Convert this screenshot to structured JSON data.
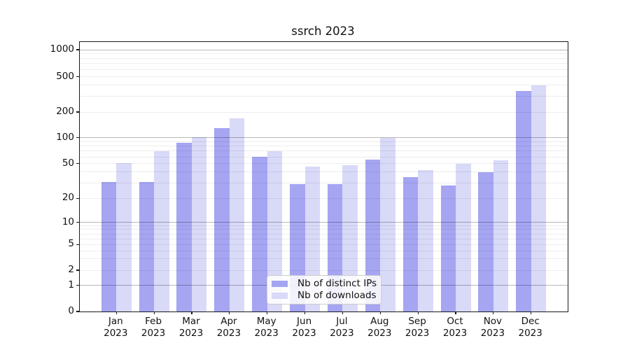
{
  "figure": {
    "background": "#ffffff"
  },
  "chart_data": {
    "type": "bar",
    "title": "ssrch 2023",
    "categories": [
      "Jan",
      "Feb",
      "Mar",
      "Apr",
      "May",
      "Jun",
      "Jul",
      "Aug",
      "Sep",
      "Oct",
      "Nov",
      "Dec"
    ],
    "category_year": "2023",
    "series": [
      {
        "name": "Nb of distinct IPs",
        "color": "#a5a5f2",
        "values": [
          31,
          31,
          88,
          130,
          60,
          29,
          29,
          56,
          35,
          28,
          40,
          345
        ]
      },
      {
        "name": "Nb of downloads",
        "color": "#d9d9f8",
        "values": [
          51,
          70,
          101,
          170,
          70,
          46,
          48,
          100,
          42,
          50,
          55,
          400
        ]
      }
    ],
    "y_axis": {
      "scale": "symlog-like",
      "tick_values": [
        0,
        1,
        2,
        5,
        10,
        20,
        50,
        100,
        200,
        500,
        1000
      ],
      "tick_fractions_from_top": [
        1,
        0.9036,
        0.8468,
        0.7514,
        0.6694,
        0.5801,
        0.4512,
        0.3551,
        0.2597,
        0.1286,
        0.0286
      ],
      "minor_grid_values": [
        3,
        4,
        6,
        7,
        8,
        9,
        30,
        40,
        60,
        70,
        80,
        90,
        300,
        400,
        600,
        700,
        800,
        900
      ],
      "major_grid_values": [
        1,
        10,
        100,
        1000
      ]
    },
    "xlabel": "",
    "ylabel": "",
    "grid": true,
    "legend_position": "lower center"
  },
  "colors": {
    "spine": "#1a1a1a",
    "major_grid": "#b9b9b9",
    "minor_grid": "#ededed",
    "text": "#111111",
    "legend_border": "#cccccc",
    "legend_background": "#ffffff"
  }
}
